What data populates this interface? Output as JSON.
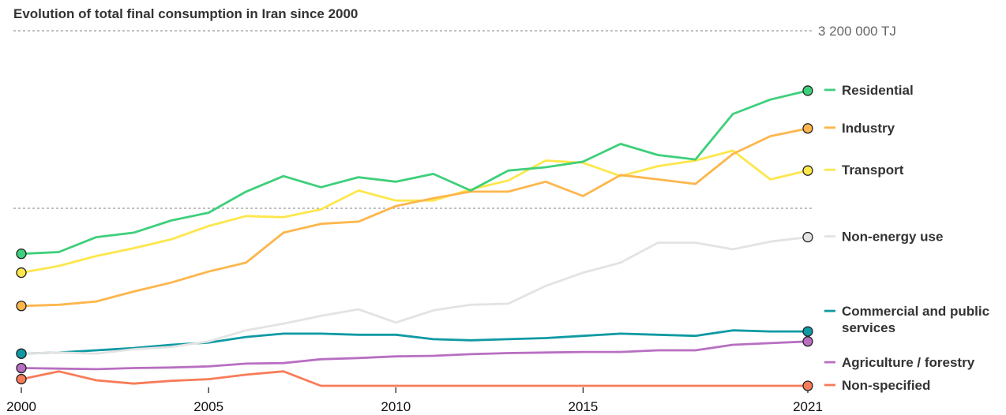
{
  "chart_data": {
    "type": "line",
    "title": "Evolution of total final consumption in Iran since 2000",
    "x": [
      2000,
      2001,
      2002,
      2003,
      2004,
      2005,
      2006,
      2007,
      2008,
      2009,
      2010,
      2011,
      2012,
      2013,
      2014,
      2015,
      2016,
      2017,
      2018,
      2019,
      2020,
      2021
    ],
    "x_ticks": [
      "2000",
      "2005",
      "2010",
      "2015",
      "2021"
    ],
    "ylim": [
      0,
      3200000
    ],
    "reference_line": {
      "value": 3200000,
      "label": "3 200 000 TJ"
    },
    "mid_gridline_value": 1600000,
    "series": [
      {
        "name": "Residential",
        "color": "#3ecf7b",
        "values": [
          1190000,
          1205000,
          1340000,
          1380000,
          1490000,
          1560000,
          1750000,
          1890000,
          1790000,
          1880000,
          1840000,
          1910000,
          1760000,
          1940000,
          1970000,
          2020000,
          2180000,
          2080000,
          2040000,
          2450000,
          2580000,
          2660000
        ]
      },
      {
        "name": "Industry",
        "color": "#fdb64c",
        "values": [
          720000,
          730000,
          760000,
          850000,
          930000,
          1030000,
          1110000,
          1380000,
          1460000,
          1480000,
          1620000,
          1690000,
          1750000,
          1750000,
          1840000,
          1710000,
          1900000,
          1860000,
          1820000,
          2090000,
          2250000,
          2320000
        ]
      },
      {
        "name": "Transport",
        "color": "#fde74c",
        "values": [
          1020000,
          1080000,
          1170000,
          1240000,
          1320000,
          1440000,
          1530000,
          1520000,
          1590000,
          1760000,
          1670000,
          1670000,
          1770000,
          1850000,
          2030000,
          2010000,
          1890000,
          1980000,
          2030000,
          2120000,
          1860000,
          1940000
        ]
      },
      {
        "name": "Non-energy use",
        "color": "#e3e3e3",
        "values": [
          290000,
          300000,
          290000,
          330000,
          350000,
          400000,
          500000,
          560000,
          630000,
          690000,
          570000,
          680000,
          730000,
          740000,
          900000,
          1020000,
          1110000,
          1290000,
          1290000,
          1230000,
          1300000,
          1340000
        ]
      },
      {
        "name": "Commercial and public services",
        "color": "#0f9aa3",
        "values": [
          290000,
          300000,
          320000,
          340000,
          370000,
          390000,
          440000,
          470000,
          470000,
          460000,
          460000,
          420000,
          410000,
          420000,
          430000,
          450000,
          470000,
          460000,
          450000,
          500000,
          490000,
          490000
        ]
      },
      {
        "name": "Agriculture / forestry",
        "color": "#b86fc2",
        "values": [
          160000,
          155000,
          150000,
          160000,
          165000,
          175000,
          200000,
          205000,
          240000,
          250000,
          265000,
          270000,
          285000,
          295000,
          300000,
          305000,
          305000,
          320000,
          320000,
          370000,
          385000,
          400000
        ]
      },
      {
        "name": "Non-specified",
        "color": "#f87c59",
        "values": [
          60000,
          130000,
          50000,
          20000,
          45000,
          60000,
          100000,
          130000,
          0,
          0,
          0,
          0,
          0,
          0,
          0,
          0,
          0,
          0,
          0,
          0,
          0,
          0
        ]
      }
    ],
    "legend": [
      {
        "series": "Residential",
        "label_lines": [
          "Residential"
        ]
      },
      {
        "series": "Industry",
        "label_lines": [
          "Industry"
        ]
      },
      {
        "series": "Transport",
        "label_lines": [
          "Transport"
        ]
      },
      {
        "series": "Non-energy use",
        "label_lines": [
          "Non-energy use"
        ]
      },
      {
        "series": "Commercial and public services",
        "label_lines": [
          "Commercial and public",
          "services"
        ]
      },
      {
        "series": "Agriculture / forestry",
        "label_lines": [
          "Agriculture / forestry"
        ]
      },
      {
        "series": "Non-specified",
        "label_lines": [
          "Non-specified"
        ]
      }
    ],
    "legend_placement": "right",
    "grid": false
  }
}
